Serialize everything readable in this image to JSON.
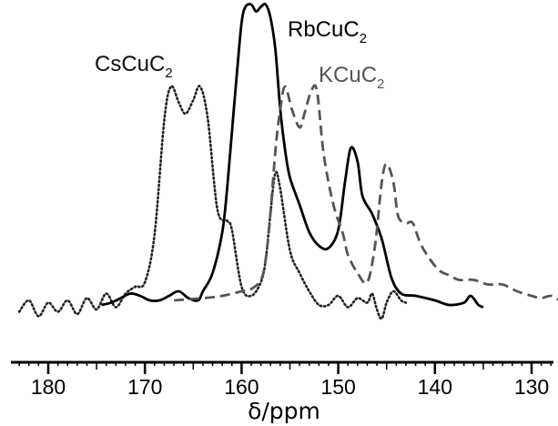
{
  "chart_data": {
    "type": "line",
    "title": "",
    "xlabel": "δ/ppm",
    "ylabel": "",
    "xlim": [
      183.5,
      126
    ],
    "x_reversed": true,
    "x_ticks": [
      180,
      170,
      160,
      150,
      140,
      130
    ],
    "x_tick_labels": [
      "180",
      "170",
      "160",
      "150",
      "140",
      "130"
    ],
    "y_axis_shown": false,
    "grid": false,
    "legend": "none",
    "series": [
      {
        "name": "CsCuC2",
        "label_main": "CsCuC",
        "label_sub": "2",
        "style": "dotted",
        "color": "#222222",
        "points": [
          [
            183.0,
            0.01
          ],
          [
            182.0,
            0.06
          ],
          [
            181.0,
            -0.01
          ],
          [
            180.0,
            0.05
          ],
          [
            179.0,
            0.01
          ],
          [
            178.0,
            0.06
          ],
          [
            177.0,
            0.0
          ],
          [
            176.0,
            0.07
          ],
          [
            175.0,
            0.02
          ],
          [
            174.0,
            0.09
          ],
          [
            173.0,
            0.03
          ],
          [
            172.0,
            0.09
          ],
          [
            171.0,
            0.12
          ],
          [
            170.0,
            0.14
          ],
          [
            169.0,
            0.35
          ],
          [
            168.0,
            0.85
          ],
          [
            167.3,
            1.0
          ],
          [
            166.5,
            0.93
          ],
          [
            165.8,
            0.88
          ],
          [
            165.0,
            0.94
          ],
          [
            164.3,
            1.0
          ],
          [
            163.5,
            0.86
          ],
          [
            162.5,
            0.46
          ],
          [
            161.5,
            0.41
          ],
          [
            161.0,
            0.37
          ],
          [
            160.0,
            0.12
          ],
          [
            159.0,
            0.08
          ],
          [
            158.0,
            0.14
          ],
          [
            157.5,
            0.24
          ],
          [
            157.0,
            0.45
          ],
          [
            156.5,
            0.62
          ],
          [
            156.0,
            0.55
          ],
          [
            155.0,
            0.28
          ],
          [
            154.0,
            0.18
          ],
          [
            153.0,
            0.1
          ],
          [
            152.0,
            0.04
          ],
          [
            151.0,
            0.04
          ],
          [
            150.0,
            0.08
          ],
          [
            149.0,
            0.03
          ],
          [
            148.0,
            0.07
          ],
          [
            147.0,
            0.05
          ],
          [
            146.5,
            0.09
          ],
          [
            146.0,
            0.02
          ],
          [
            145.5,
            -0.02
          ],
          [
            145.0,
            0.05
          ],
          [
            144.3,
            0.1
          ],
          [
            143.5,
            0.06
          ],
          [
            143.0,
            0.05
          ]
        ]
      },
      {
        "name": "RbCuC2",
        "label_main": "RbCuC",
        "label_sub": "2",
        "style": "solid",
        "color": "#000000",
        "points": [
          [
            174.5,
            0.04
          ],
          [
            173.5,
            0.05
          ],
          [
            172.5,
            0.07
          ],
          [
            171.5,
            0.09
          ],
          [
            170.5,
            0.08
          ],
          [
            169.5,
            0.06
          ],
          [
            168.5,
            0.06
          ],
          [
            167.5,
            0.08
          ],
          [
            166.5,
            0.1
          ],
          [
            165.5,
            0.07
          ],
          [
            164.5,
            0.06
          ],
          [
            164.0,
            0.1
          ],
          [
            163.0,
            0.18
          ],
          [
            162.0,
            0.36
          ],
          [
            161.5,
            0.55
          ],
          [
            161.0,
            0.8
          ],
          [
            160.5,
            1.05
          ],
          [
            160.0,
            1.28
          ],
          [
            159.6,
            1.35
          ],
          [
            159.0,
            1.36
          ],
          [
            158.5,
            1.33
          ],
          [
            158.0,
            1.35
          ],
          [
            157.5,
            1.36
          ],
          [
            157.0,
            1.3
          ],
          [
            156.5,
            1.16
          ],
          [
            156.0,
            0.9
          ],
          [
            155.5,
            0.72
          ],
          [
            155.0,
            0.6
          ],
          [
            154.0,
            0.48
          ],
          [
            153.0,
            0.36
          ],
          [
            152.0,
            0.3
          ],
          [
            151.0,
            0.29
          ],
          [
            150.0,
            0.37
          ],
          [
            149.3,
            0.58
          ],
          [
            148.7,
            0.73
          ],
          [
            148.0,
            0.67
          ],
          [
            147.5,
            0.52
          ],
          [
            146.5,
            0.44
          ],
          [
            145.5,
            0.33
          ],
          [
            144.5,
            0.16
          ],
          [
            143.5,
            0.09
          ],
          [
            142.0,
            0.08
          ],
          [
            140.0,
            0.06
          ],
          [
            138.5,
            0.04
          ],
          [
            137.0,
            0.05
          ],
          [
            136.3,
            0.08
          ],
          [
            135.5,
            0.04
          ],
          [
            135.0,
            0.03
          ]
        ]
      },
      {
        "name": "KCuC2",
        "label_main": "KCuC",
        "label_sub": "2",
        "style": "dashed",
        "color": "#555555",
        "points": [
          [
            167.0,
            0.06
          ],
          [
            164.0,
            0.07
          ],
          [
            162.0,
            0.08
          ],
          [
            160.0,
            0.1
          ],
          [
            159.0,
            0.11
          ],
          [
            158.0,
            0.15
          ],
          [
            157.5,
            0.24
          ],
          [
            157.0,
            0.45
          ],
          [
            156.5,
            0.72
          ],
          [
            156.0,
            0.9
          ],
          [
            155.5,
            1.0
          ],
          [
            154.8,
            0.9
          ],
          [
            154.0,
            0.82
          ],
          [
            153.5,
            0.88
          ],
          [
            152.8,
            0.98
          ],
          [
            152.2,
            0.98
          ],
          [
            151.5,
            0.7
          ],
          [
            150.5,
            0.48
          ],
          [
            149.5,
            0.35
          ],
          [
            149.0,
            0.26
          ],
          [
            148.0,
            0.18
          ],
          [
            147.0,
            0.14
          ],
          [
            146.2,
            0.3
          ],
          [
            145.5,
            0.58
          ],
          [
            145.0,
            0.66
          ],
          [
            144.3,
            0.58
          ],
          [
            143.8,
            0.43
          ],
          [
            143.0,
            0.4
          ],
          [
            142.3,
            0.4
          ],
          [
            141.5,
            0.31
          ],
          [
            140.5,
            0.24
          ],
          [
            139.5,
            0.19
          ],
          [
            138.5,
            0.17
          ],
          [
            137.5,
            0.15
          ],
          [
            136.0,
            0.15
          ],
          [
            134.5,
            0.13
          ],
          [
            133.0,
            0.13
          ],
          [
            131.5,
            0.1
          ],
          [
            130.0,
            0.08
          ],
          [
            129.0,
            0.07
          ],
          [
            128.0,
            0.08
          ],
          [
            127.0,
            0.06
          ],
          [
            126.0,
            0.07
          ]
        ]
      }
    ]
  }
}
